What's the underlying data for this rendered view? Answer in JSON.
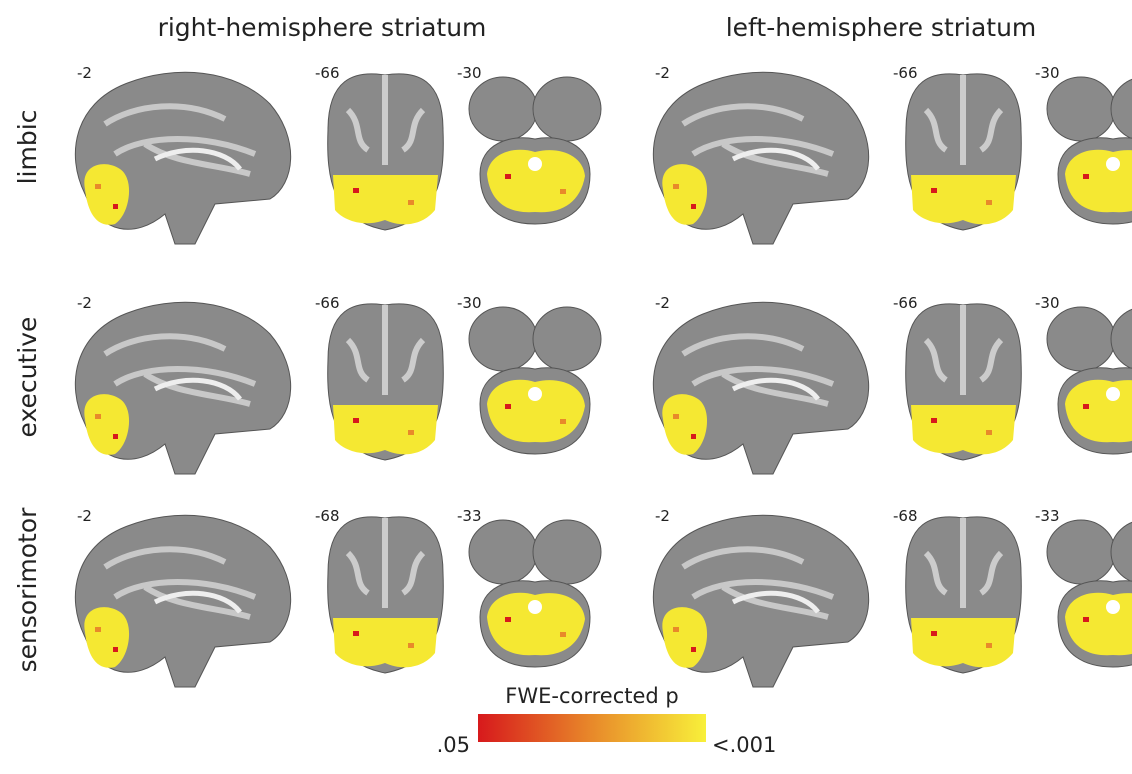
{
  "columns": [
    "right-hemisphere striatum",
    "left-hemisphere striatum"
  ],
  "rows": [
    {
      "label": "limbic",
      "slices": [
        "-2",
        "-66",
        "-30"
      ]
    },
    {
      "label": "executive",
      "slices": [
        "-2",
        "-66",
        "-30"
      ]
    },
    {
      "label": "sensorimotor",
      "slices": [
        "-2",
        "-68",
        "-33"
      ]
    }
  ],
  "colorbar": {
    "title": "FWE-corrected p",
    "min_label": ".05",
    "max_label": "<.001"
  }
}
